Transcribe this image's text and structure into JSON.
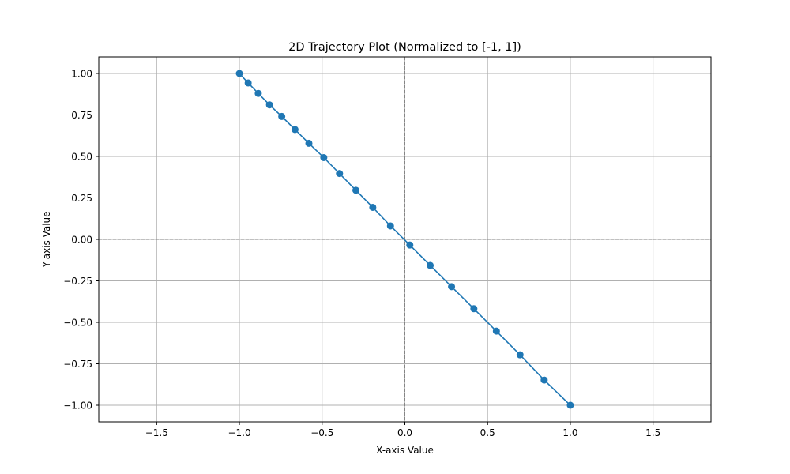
{
  "chart_data": {
    "type": "line",
    "title": "2D Trajectory Plot (Normalized to [-1, 1])",
    "xlabel": "X-axis Value",
    "ylabel": "Y-axis Value",
    "xlim": [
      -1.85,
      1.85
    ],
    "ylim": [
      -1.1,
      1.1
    ],
    "xticks": [
      -1.5,
      -1.0,
      -0.5,
      0.0,
      0.5,
      1.0,
      1.5
    ],
    "xtick_labels": [
      "−1.5",
      "−1.0",
      "−0.5",
      "0.0",
      "0.5",
      "1.0",
      "1.5"
    ],
    "yticks": [
      1.0,
      0.75,
      0.5,
      0.25,
      0.0,
      -0.25,
      -0.5,
      -0.75,
      -1.0
    ],
    "ytick_labels": [
      "1.00",
      "0.75",
      "0.50",
      "0.25",
      "0.00",
      "−0.25",
      "−0.50",
      "−0.75",
      "−1.00"
    ],
    "grid": true,
    "zero_reference_lines": true,
    "marker": "circle",
    "series": [
      {
        "color": "#1f77b4",
        "x": [
          -1.0,
          -0.947,
          -0.886,
          -0.818,
          -0.744,
          -0.664,
          -0.58,
          -0.49,
          -0.395,
          -0.296,
          -0.194,
          -0.087,
          0.03,
          0.153,
          0.282,
          0.417,
          0.553,
          0.696,
          0.842,
          1.0
        ],
        "y": [
          1.0,
          0.943,
          0.88,
          0.811,
          0.741,
          0.662,
          0.579,
          0.493,
          0.397,
          0.296,
          0.193,
          0.081,
          -0.034,
          -0.157,
          -0.285,
          -0.418,
          -0.553,
          -0.696,
          -0.848,
          -1.0
        ]
      }
    ]
  }
}
